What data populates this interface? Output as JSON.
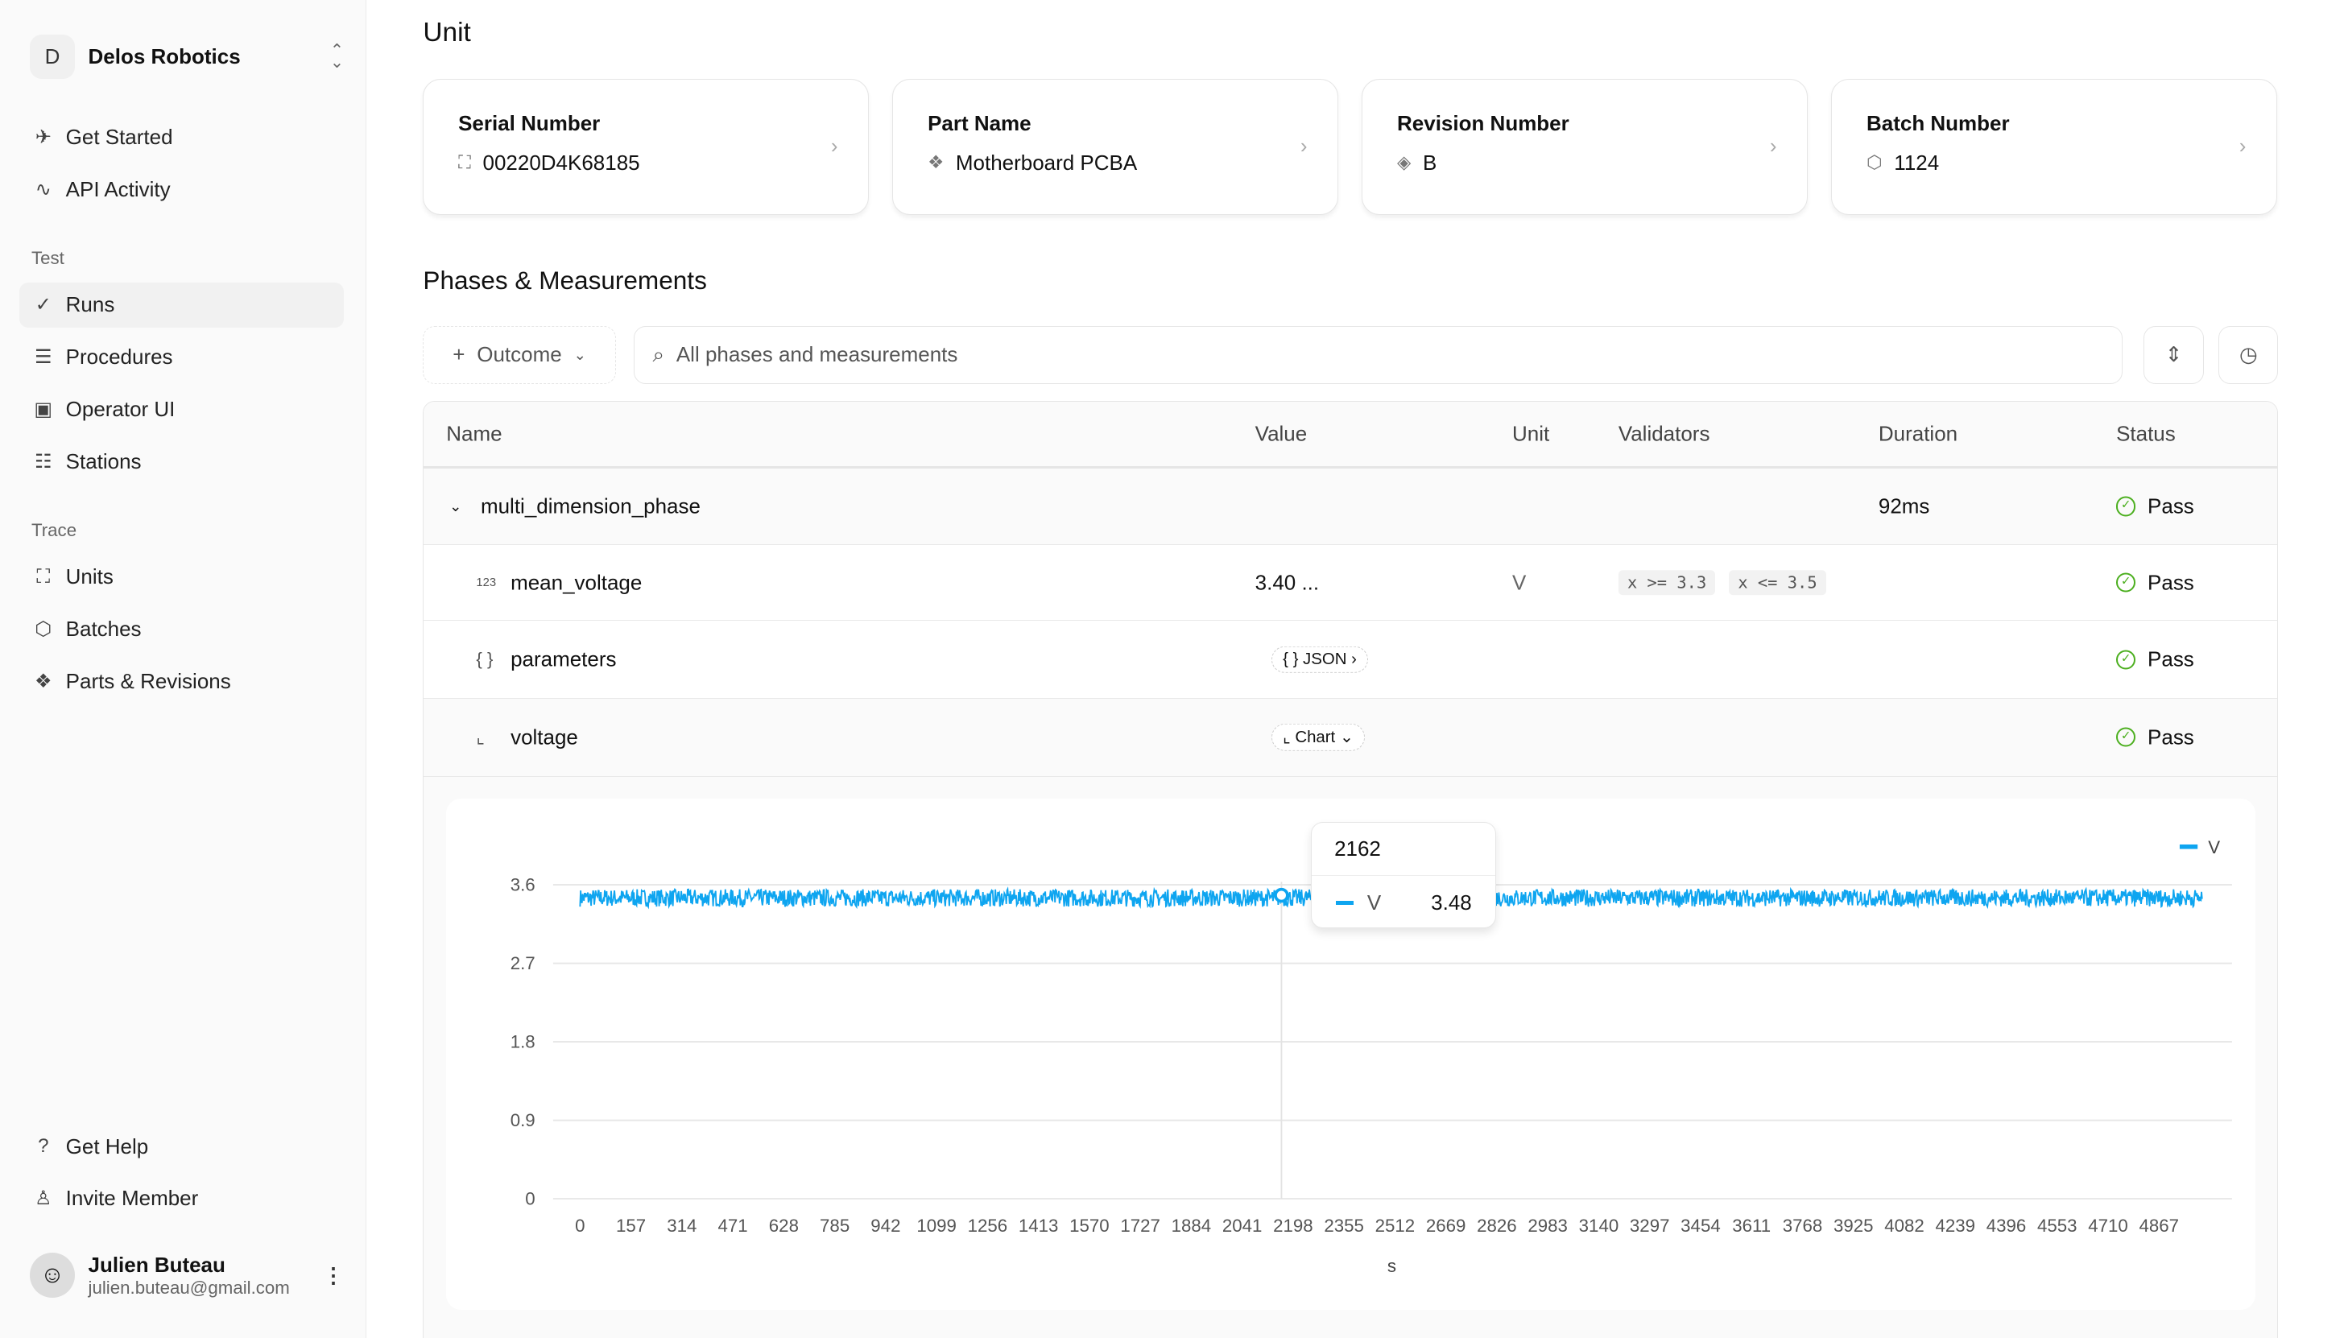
{
  "org": {
    "initial": "D",
    "name": "Delos Robotics"
  },
  "nav": {
    "top": [
      {
        "label": "Get Started",
        "icon": "rocket-icon"
      },
      {
        "label": "API Activity",
        "icon": "activity-icon"
      }
    ],
    "test_label": "Test",
    "test": [
      {
        "label": "Runs",
        "icon": "check-icon",
        "active": true
      },
      {
        "label": "Procedures",
        "icon": "list-icon"
      },
      {
        "label": "Operator UI",
        "icon": "monitor-icon"
      },
      {
        "label": "Stations",
        "icon": "server-icon"
      }
    ],
    "trace_label": "Trace",
    "trace": [
      {
        "label": "Units",
        "icon": "scan-icon"
      },
      {
        "label": "Batches",
        "icon": "box-icon"
      },
      {
        "label": "Parts & Revisions",
        "icon": "parts-icon"
      }
    ],
    "bottom": [
      {
        "label": "Get Help",
        "icon": "help-icon"
      },
      {
        "label": "Invite Member",
        "icon": "user-plus-icon"
      }
    ]
  },
  "user": {
    "name": "Julien Buteau",
    "email": "julien.buteau@gmail.com"
  },
  "unit": {
    "title": "Unit",
    "cards": [
      {
        "label": "Serial Number",
        "value": "00220D4K68185",
        "icon": "scan-icon"
      },
      {
        "label": "Part Name",
        "value": "Motherboard PCBA",
        "icon": "parts-icon"
      },
      {
        "label": "Revision Number",
        "value": "B",
        "icon": "layers-icon"
      },
      {
        "label": "Batch Number",
        "value": "1124",
        "icon": "box-icon"
      }
    ]
  },
  "phases": {
    "title": "Phases & Measurements",
    "outcome_label": "Outcome",
    "search_placeholder": "All phases and measurements",
    "columns": [
      "Name",
      "Value",
      "Unit",
      "Validators",
      "Duration",
      "Status"
    ],
    "rows": [
      {
        "name": "multi_dimension_phase",
        "duration": "92ms",
        "status": "Pass"
      },
      {
        "name": "mean_voltage",
        "value": "3.40 ...",
        "unit": "V",
        "validators": [
          "x >= 3.3",
          "x <= 3.5"
        ],
        "status": "Pass"
      },
      {
        "name": "parameters",
        "value": "{ } JSON",
        "status": "Pass"
      },
      {
        "name": "voltage",
        "value": "Chart",
        "status": "Pass"
      }
    ]
  },
  "chart_data": {
    "type": "line",
    "xlabel": "s",
    "ylabel": "",
    "y_ticks": [
      "0",
      "0.9",
      "1.8",
      "2.7",
      "3.6"
    ],
    "ylim": [
      0,
      3.6
    ],
    "x_ticks": [
      "0",
      "157",
      "314",
      "471",
      "628",
      "785",
      "942",
      "1099",
      "1256",
      "1413",
      "1570",
      "1727",
      "1884",
      "2041",
      "2198",
      "2355",
      "2512",
      "2669",
      "2826",
      "2983",
      "3140",
      "3297",
      "3454",
      "3611",
      "3768",
      "3925",
      "4082",
      "4239",
      "4396",
      "4553",
      "4710",
      "4867"
    ],
    "xlim": [
      0,
      4867
    ],
    "grid": true,
    "legend": "top-right",
    "series": [
      {
        "name": "V",
        "color": "#0ea5f0",
        "x_range": [
          0,
          5000
        ],
        "y_range": [
          3.35,
          3.55
        ]
      }
    ],
    "tooltip": {
      "x": "2162",
      "series": "V",
      "value": "3.48"
    }
  }
}
